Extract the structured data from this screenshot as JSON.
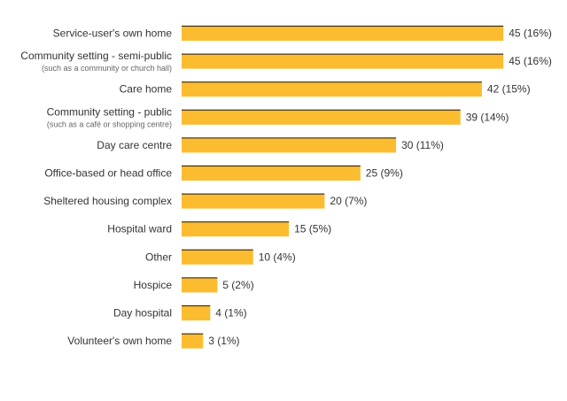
{
  "chart_data": {
    "type": "bar",
    "orientation": "horizontal",
    "bar_color": "#fbbc2f",
    "bar_top_edge_color": "#1a1a1a",
    "xlim": [
      0,
      45
    ],
    "grid": false,
    "legend": "none",
    "categories": [
      {
        "label": "Service-user's own home",
        "sublabel": "",
        "value": 45,
        "value_label": "45 (16%)"
      },
      {
        "label": "Community setting - semi-public",
        "sublabel": "(such as a community or church hall)",
        "value": 45,
        "value_label": "45 (16%)"
      },
      {
        "label": "Care home",
        "sublabel": "",
        "value": 42,
        "value_label": "42 (15%)"
      },
      {
        "label": "Community setting - public",
        "sublabel": "(such as a café or shopping centre)",
        "value": 39,
        "value_label": "39 (14%)"
      },
      {
        "label": "Day care centre",
        "sublabel": "",
        "value": 30,
        "value_label": "30 (11%)"
      },
      {
        "label": "Office-based or head office",
        "sublabel": "",
        "value": 25,
        "value_label": "25 (9%)"
      },
      {
        "label": "Sheltered housing complex",
        "sublabel": "",
        "value": 20,
        "value_label": "20 (7%)"
      },
      {
        "label": "Hospital ward",
        "sublabel": "",
        "value": 15,
        "value_label": "15 (5%)"
      },
      {
        "label": "Other",
        "sublabel": "",
        "value": 10,
        "value_label": "10 (4%)"
      },
      {
        "label": "Hospice",
        "sublabel": "",
        "value": 5,
        "value_label": "5 (2%)"
      },
      {
        "label": "Day hospital",
        "sublabel": "",
        "value": 4,
        "value_label": "4 (1%)"
      },
      {
        "label": "Volunteer's own home",
        "sublabel": "",
        "value": 3,
        "value_label": "3 (1%)"
      }
    ]
  }
}
